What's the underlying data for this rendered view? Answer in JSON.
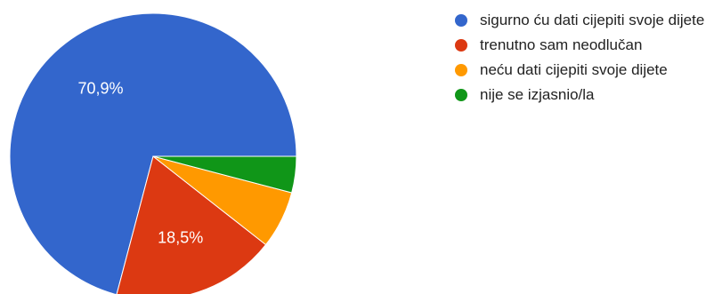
{
  "chart_data": {
    "type": "pie",
    "title": "",
    "series": [
      {
        "values": [
          70.9,
          18.5,
          6.5,
          4.1
        ]
      }
    ],
    "categories": [
      "sigurno ću dati cijepiti svoje dijete",
      "trenutno sam neodlučan",
      "neću dati cijepiti svoje dijete",
      "nije se izjasnio/la"
    ],
    "colors": [
      "#3366cc",
      "#dc3912",
      "#ff9900",
      "#109618"
    ],
    "data_labels": [
      "70,9%",
      "18,5%",
      "",
      ""
    ],
    "legend_position": "right"
  }
}
